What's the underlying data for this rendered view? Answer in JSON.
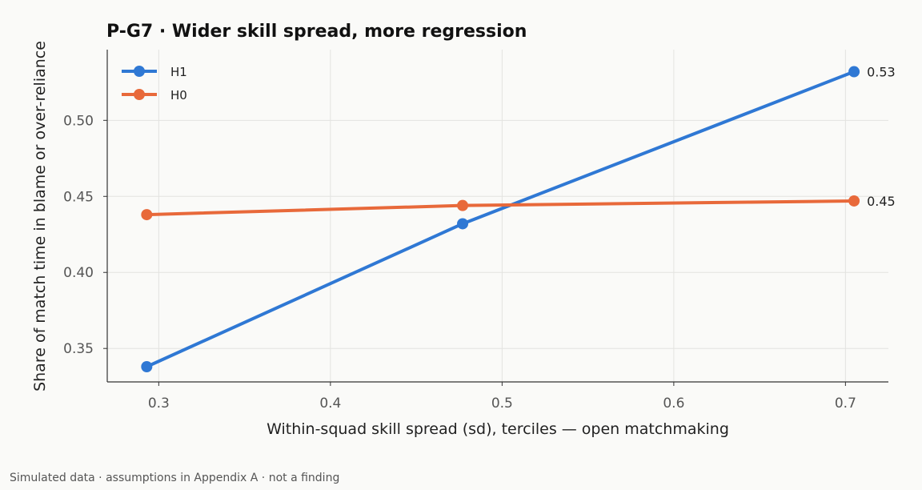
{
  "chart_data": {
    "type": "line",
    "title": "P-G7 · Wider skill spread, more regression",
    "xlabel": "Within-squad skill spread (sd), terciles — open matchmaking",
    "ylabel": "Share of match time in blame or over-reliance",
    "xlim": [
      0.27,
      0.725
    ],
    "ylim": [
      0.328,
      0.5465
    ],
    "xticks": [
      0.3,
      0.4,
      0.5,
      0.6,
      0.7
    ],
    "xtick_labels": [
      "0.3",
      "0.4",
      "0.5",
      "0.6",
      "0.7"
    ],
    "yticks": [
      0.35,
      0.4,
      0.45,
      0.5
    ],
    "ytick_labels": [
      "0.35",
      "0.40",
      "0.45",
      "0.50"
    ],
    "grid": true,
    "legend_position": "top-left",
    "series": [
      {
        "name": "H1",
        "color": "#2f78d4",
        "x": [
          0.293,
          0.477,
          0.705
        ],
        "y": [
          0.338,
          0.432,
          0.532
        ],
        "end_label": "0.53"
      },
      {
        "name": "H0",
        "color": "#e8693a",
        "x": [
          0.293,
          0.477,
          0.705
        ],
        "y": [
          0.438,
          0.444,
          0.447
        ],
        "end_label": "0.45"
      }
    ]
  },
  "footnote": "Simulated data · assumptions in Appendix A · not a finding"
}
